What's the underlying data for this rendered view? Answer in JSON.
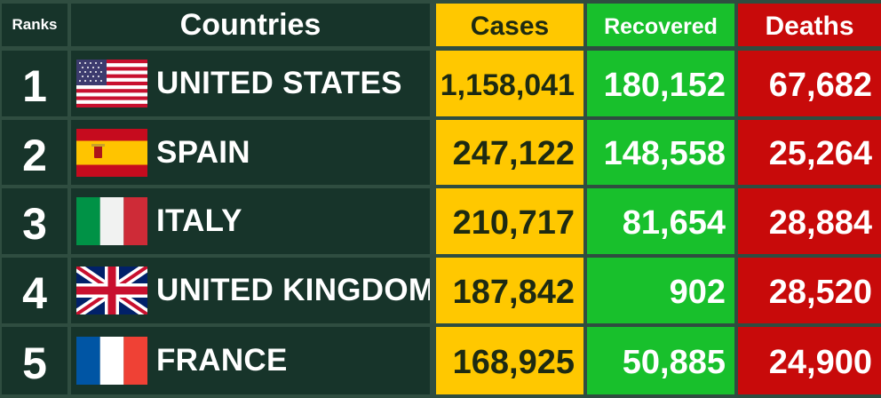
{
  "headers": {
    "rank": "Ranks",
    "country": "Countries",
    "cases": "Cases",
    "recovered": "Recovered",
    "deaths": "Deaths"
  },
  "rows": [
    {
      "rank": "1",
      "country": "UNITED STATES",
      "flag": "us-flag-icon",
      "cases": "1,158,041",
      "recovered": "180,152",
      "deaths": "67,682"
    },
    {
      "rank": "2",
      "country": "SPAIN",
      "flag": "spain-flag-icon",
      "cases": "247,122",
      "recovered": "148,558",
      "deaths": "25,264"
    },
    {
      "rank": "3",
      "country": "ITALY",
      "flag": "italy-flag-icon",
      "cases": "210,717",
      "recovered": "81,654",
      "deaths": "28,884"
    },
    {
      "rank": "4",
      "country": "UNITED KINGDOM",
      "flag": "uk-flag-icon",
      "cases": "187,842",
      "recovered": "902",
      "deaths": "28,520"
    },
    {
      "rank": "5",
      "country": "FRANCE",
      "flag": "france-flag-icon",
      "cases": "168,925",
      "recovered": "50,885",
      "deaths": "24,900"
    }
  ],
  "colors": {
    "background": "#2f4d40",
    "dark_cell": "#17342a",
    "cases": "#ffc800",
    "recovered": "#18c02c",
    "deaths": "#c80a0a",
    "text": "#ffffff"
  }
}
